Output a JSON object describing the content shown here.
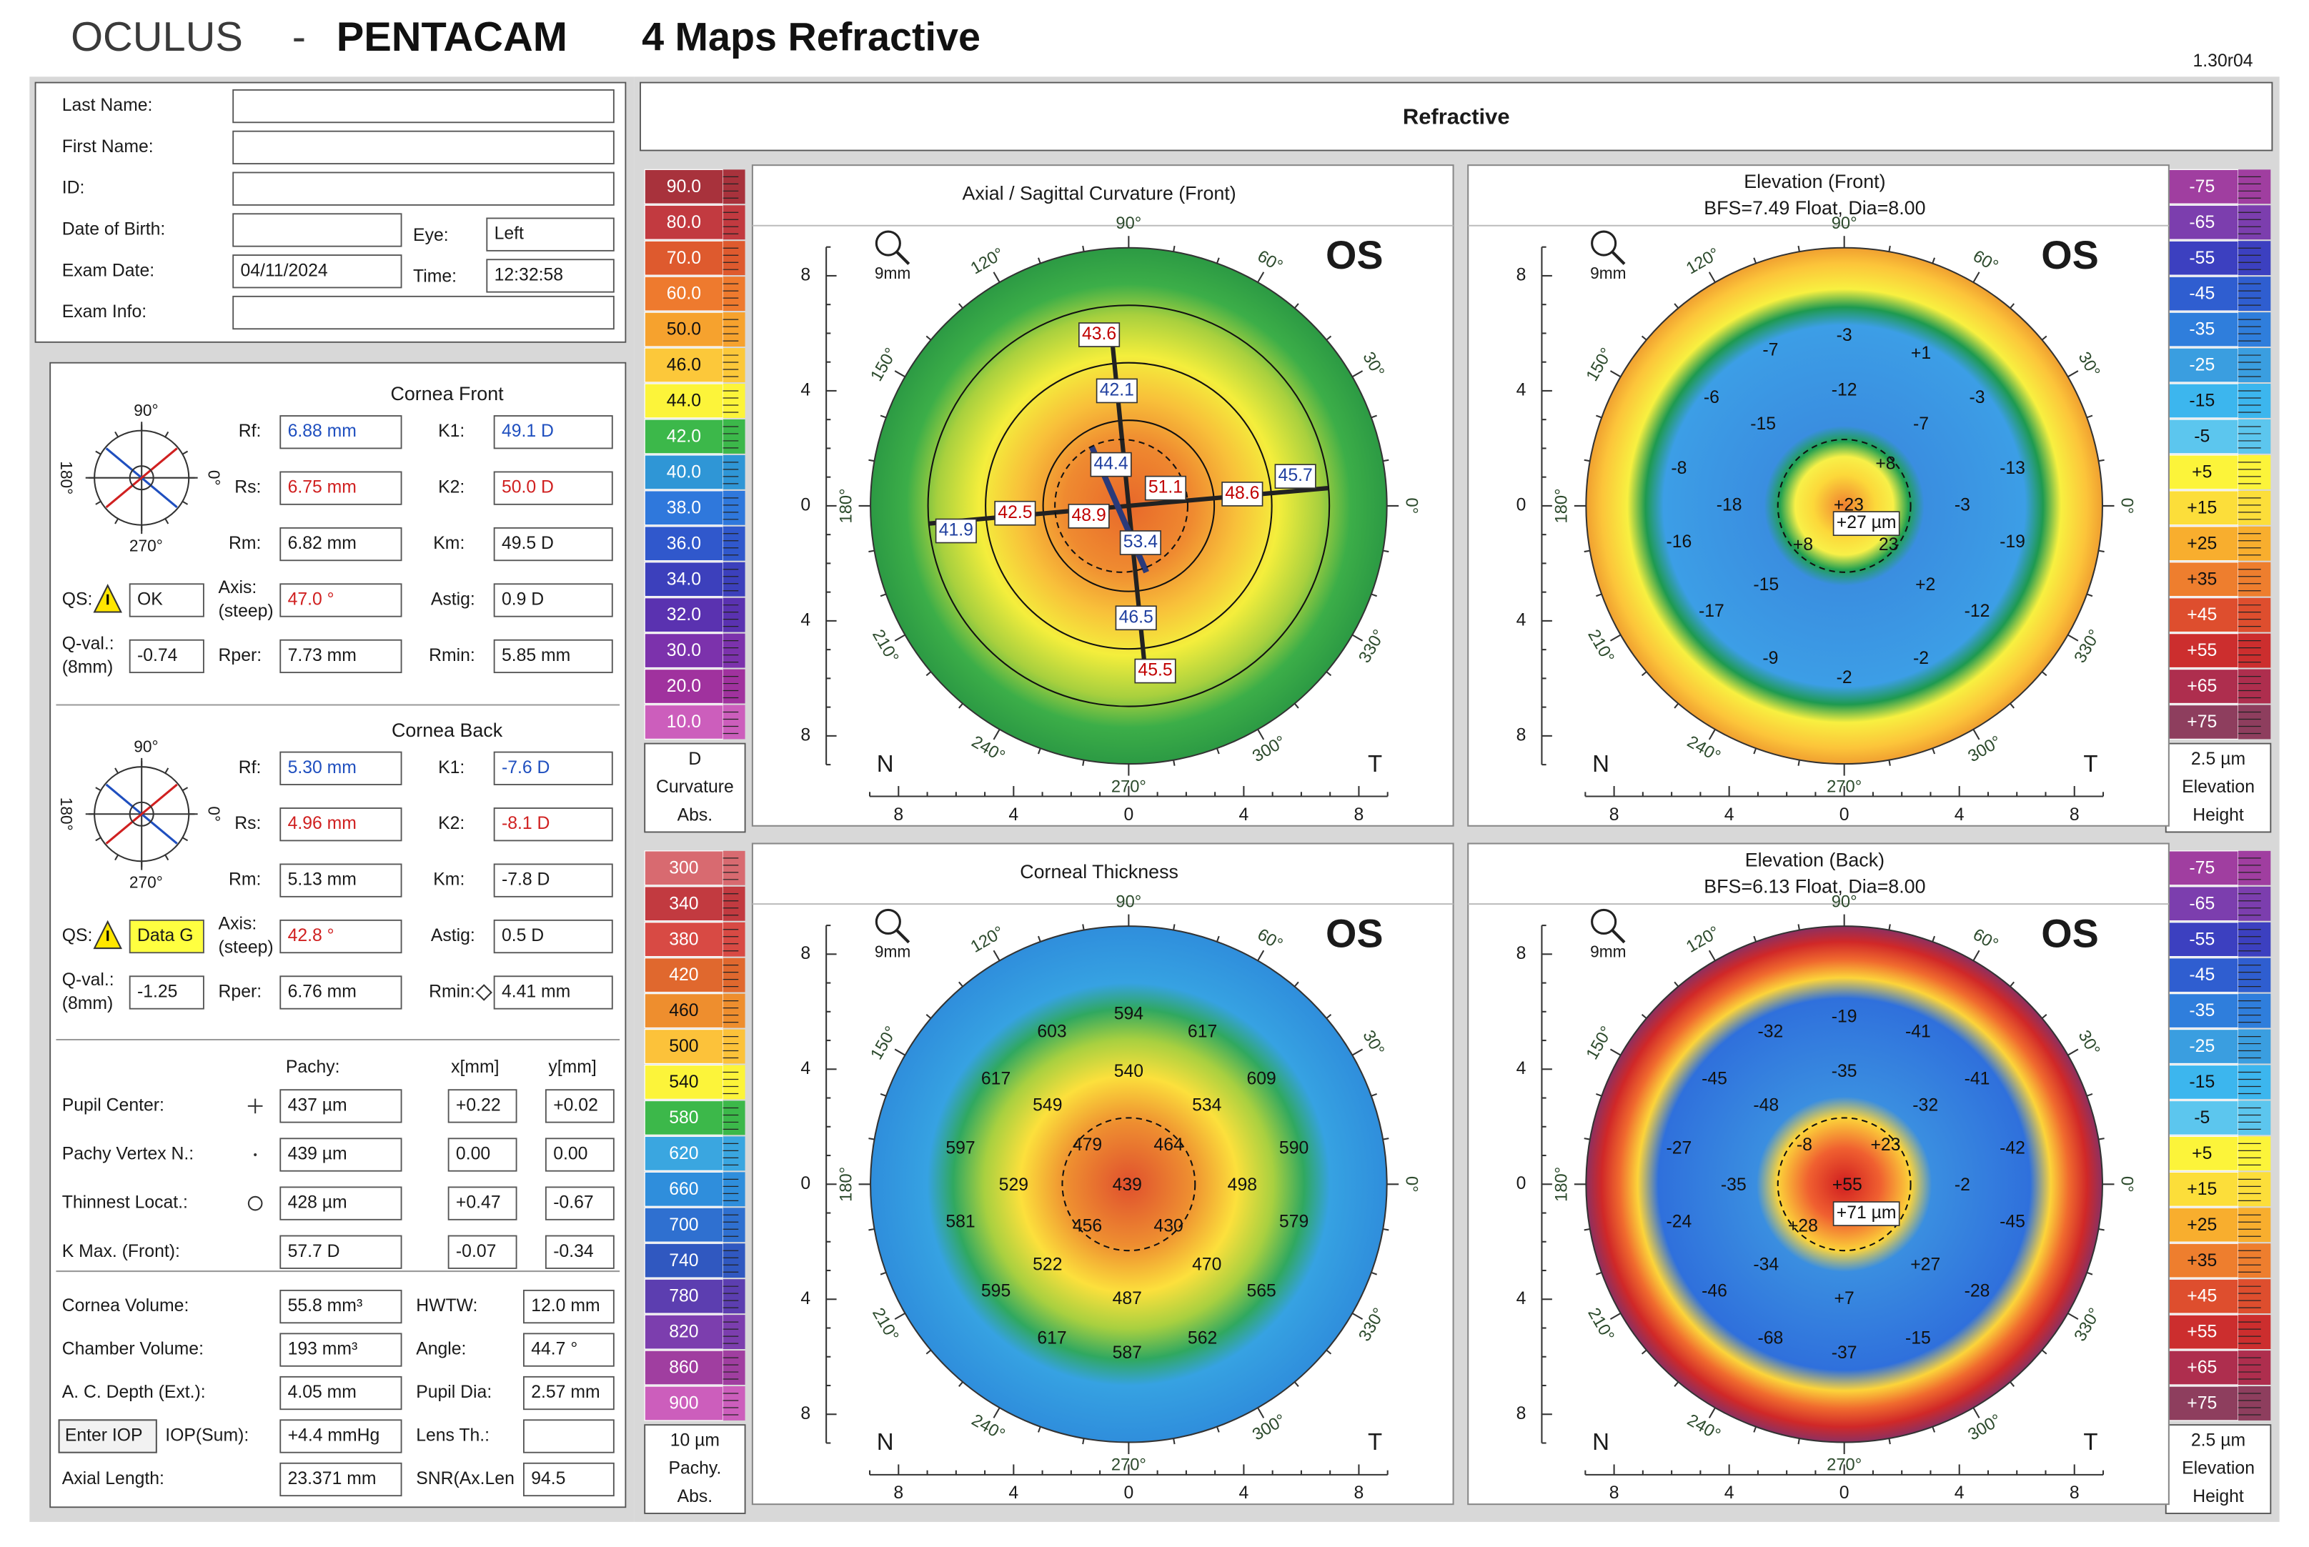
{
  "header": {
    "brand": "OCULUS",
    "dash": "-",
    "product": "PENTACAM",
    "title": "4 Maps Refractive",
    "version": "1.30r04",
    "section": "Refractive"
  },
  "patient": {
    "fields": [
      {
        "label": "Last Name:"
      },
      {
        "label": "First Name:"
      },
      {
        "label": "ID:"
      },
      {
        "label": "Date of Birth:"
      },
      {
        "label": "Exam Date:",
        "value": "04/11/2024"
      },
      {
        "label": "Exam Info:"
      }
    ],
    "eye": {
      "label": "Eye:",
      "value": "Left"
    },
    "time": {
      "label": "Time:",
      "value": "12:32:58"
    }
  },
  "dial_labels": [
    "90°",
    "180°",
    "0°",
    "270°"
  ],
  "cornea": [
    {
      "title": "Cornea Front",
      "fields": [
        {
          "label": "Rf:",
          "value": "6.88 mm",
          "color": "#1f4fbf"
        },
        {
          "label": "K1:",
          "value": "49.1 D",
          "color": "#1f4fbf"
        },
        {
          "label": "Rs:",
          "value": "6.75 mm",
          "color": "#d02020"
        },
        {
          "label": "K2:",
          "value": "50.0 D",
          "color": "#d02020"
        },
        {
          "label": "Rm:",
          "value": "6.82 mm"
        },
        {
          "label": "Km:",
          "value": "49.5 D"
        },
        {
          "label": "QS:",
          "value": "OK"
        },
        {
          "label": "Axis:",
          "sublabel": "(steep)",
          "value": "47.0 °",
          "color": "#d02020"
        },
        {
          "label": "Astig:",
          "value": "0.9 D"
        },
        {
          "label": "Q-val.:",
          "sublabel": "(8mm)",
          "value": "-0.74"
        },
        {
          "label": "Rper:",
          "value": "7.73 mm"
        },
        {
          "label": "Rmin:",
          "value": "5.85 mm"
        }
      ]
    },
    {
      "title": "Cornea Back",
      "fields": [
        {
          "label": "Rf:",
          "value": "5.30 mm",
          "color": "#1f4fbf"
        },
        {
          "label": "K1:",
          "value": "-7.6 D",
          "color": "#1f4fbf"
        },
        {
          "label": "Rs:",
          "value": "4.96 mm",
          "color": "#d02020"
        },
        {
          "label": "K2:",
          "value": "-8.1 D",
          "color": "#d02020"
        },
        {
          "label": "Rm:",
          "value": "5.13 mm"
        },
        {
          "label": "Km:",
          "value": "-7.8 D"
        },
        {
          "label": "QS:",
          "value": "Data G",
          "highlight": "#ffff40"
        },
        {
          "label": "Axis:",
          "sublabel": "(steep)",
          "value": "42.8 °",
          "color": "#d02020"
        },
        {
          "label": "Astig:",
          "value": "0.5 D"
        },
        {
          "label": "Q-val.:",
          "sublabel": "(8mm)",
          "value": "-1.25"
        },
        {
          "label": "Rper:",
          "value": "6.76 mm"
        },
        {
          "label": "Rmin:",
          "value": "4.41 mm"
        }
      ]
    }
  ],
  "pachy": {
    "headers": [
      "Pachy:",
      "x[mm]",
      "y[mm]"
    ],
    "rows": [
      {
        "label": "Pupil Center:",
        "pachy": "437 µm",
        "x": "+0.22",
        "y": "+0.02"
      },
      {
        "label": "Pachy Vertex N.:",
        "pachy": "439 µm",
        "x": "0.00",
        "y": "0.00"
      },
      {
        "label": "Thinnest Locat.:",
        "pachy": "428 µm",
        "x": "+0.47",
        "y": "-0.67"
      },
      {
        "label": "K Max. (Front):",
        "pachy": "57.7 D",
        "x": "-0.07",
        "y": "-0.34"
      }
    ]
  },
  "volumes": {
    "rows": [
      [
        {
          "label": "Cornea Volume:",
          "value": "55.8 mm³"
        },
        {
          "label": "HWTW:",
          "value": "12.0 mm"
        }
      ],
      [
        {
          "label": "Chamber Volume:",
          "value": "193 mm³"
        },
        {
          "label": "Angle:",
          "value": "44.7 °"
        }
      ],
      [
        {
          "label": "A. C. Depth (Ext.):",
          "value": "4.05 mm"
        },
        {
          "label": "Pupil Dia:",
          "value": "2.57 mm"
        }
      ],
      [
        {
          "button": "Enter IOP",
          "label": "IOP(Sum):",
          "value": "+4.4 mmHg"
        },
        {
          "label": "Lens Th.:"
        }
      ],
      [
        {
          "label": "Axial Length:",
          "value": "23.371 mm"
        },
        {
          "label": "SNR(Ax.Len",
          "value": "94.5"
        }
      ]
    ]
  },
  "scales": {
    "curvature": {
      "steps": [
        {
          "label": "90.0",
          "color": "#a8323c"
        },
        {
          "label": "80.0",
          "color": "#c23a40"
        },
        {
          "label": "70.0",
          "color": "#de5a2e"
        },
        {
          "label": "60.0",
          "color": "#ee7a2e"
        },
        {
          "label": "50.0",
          "color": "#f6a22e"
        },
        {
          "label": "46.0",
          "color": "#fcc83a"
        },
        {
          "label": "44.0",
          "color": "#fcf43a"
        },
        {
          "label": "42.0",
          "color": "#3cb84a"
        },
        {
          "label": "40.0",
          "color": "#2f96d6"
        },
        {
          "label": "38.0",
          "color": "#2f78dc"
        },
        {
          "label": "36.0",
          "color": "#3058cc"
        },
        {
          "label": "34.0",
          "color": "#3c40bc"
        },
        {
          "label": "32.0",
          "color": "#5a32b0"
        },
        {
          "label": "30.0",
          "color": "#7c32ac"
        },
        {
          "label": "20.0",
          "color": "#a0329e"
        },
        {
          "label": "10.0",
          "color": "#cc5ebc"
        }
      ],
      "unit": "D",
      "caption": [
        "Curvature",
        "Abs."
      ]
    },
    "pachy": {
      "steps": [
        {
          "label": "300",
          "color": "#d86a70"
        },
        {
          "label": "340",
          "color": "#c23a40"
        },
        {
          "label": "380",
          "color": "#d84a44"
        },
        {
          "label": "420",
          "color": "#e0682e"
        },
        {
          "label": "460",
          "color": "#ee8e2e"
        },
        {
          "label": "500",
          "color": "#fcc23a"
        },
        {
          "label": "540",
          "color": "#fcf43a"
        },
        {
          "label": "580",
          "color": "#3cb84a"
        },
        {
          "label": "620",
          "color": "#3aa6e0"
        },
        {
          "label": "660",
          "color": "#2f8edc"
        },
        {
          "label": "700",
          "color": "#2f70d0"
        },
        {
          "label": "740",
          "color": "#3058c0"
        },
        {
          "label": "780",
          "color": "#5c3eb0"
        },
        {
          "label": "820",
          "color": "#7c3eae"
        },
        {
          "label": "860",
          "color": "#a03ea0"
        },
        {
          "label": "900",
          "color": "#cc5ebc"
        }
      ],
      "unit": "10 µm",
      "caption": [
        "Pachy.",
        "Abs."
      ]
    },
    "elevation": {
      "steps": [
        {
          "label": "-75",
          "color": "#a03ea0"
        },
        {
          "label": "-65",
          "color": "#7c3eae"
        },
        {
          "label": "-55",
          "color": "#3c40c0"
        },
        {
          "label": "-45",
          "color": "#2f5ed0"
        },
        {
          "label": "-35",
          "color": "#2f7edc"
        },
        {
          "label": "-25",
          "color": "#3a9ee0"
        },
        {
          "label": "-15",
          "color": "#3cb6ee"
        },
        {
          "label": "-5",
          "color": "#5cc6ee"
        },
        {
          "label": "+5",
          "color": "#fcf43a"
        },
        {
          "label": "+15",
          "color": "#fcde3a"
        },
        {
          "label": "+25",
          "color": "#f8ae2e"
        },
        {
          "label": "+35",
          "color": "#ee7e2e"
        },
        {
          "label": "+45",
          "color": "#de4e2e"
        },
        {
          "label": "+55",
          "color": "#cc2e2e"
        },
        {
          "label": "+65",
          "color": "#ae2e4e"
        },
        {
          "label": "+75",
          "color": "#8e3e5e"
        }
      ],
      "unit": "2.5 µm",
      "caption": [
        "Elevation",
        "Height"
      ]
    }
  },
  "map_common": {
    "eye": "OS",
    "zoom": "9mm",
    "axis_ticks": [
      "8",
      "4",
      "0",
      "4",
      "8"
    ],
    "angles": [
      "90°",
      "120°",
      "60°",
      "150°",
      "30°",
      "180°",
      "0°",
      "210°",
      "330°",
      "240°",
      "300°",
      "270°"
    ],
    "nasal": "N",
    "temporal": "T"
  },
  "maps": [
    {
      "title": "Axial / Sagittal Curvature (Front)",
      "values": [
        {
          "text": "43.6",
          "color": "#c00000",
          "boxed": true
        },
        {
          "text": "42.1",
          "color": "#1f3f9f",
          "boxed": true
        },
        {
          "text": "44.4",
          "color": "#1f3f9f",
          "boxed": true
        },
        {
          "text": "51.1",
          "color": "#c00000",
          "boxed": true
        },
        {
          "text": "45.7",
          "color": "#1f3f9f",
          "boxed": true
        },
        {
          "text": "48.6",
          "color": "#c00000",
          "boxed": true
        },
        {
          "text": "41.9",
          "color": "#1f3f9f",
          "boxed": true
        },
        {
          "text": "42.5",
          "color": "#c00000",
          "boxed": true
        },
        {
          "text": "48.9",
          "color": "#c00000",
          "boxed": true
        },
        {
          "text": "53.4",
          "color": "#1f3f9f",
          "boxed": true
        },
        {
          "text": "46.5",
          "color": "#1f3f9f",
          "boxed": true
        },
        {
          "text": "45.5",
          "color": "#c00000",
          "boxed": true
        }
      ]
    },
    {
      "title": "Elevation (Front)",
      "subtitle": "BFS=7.49 Float, Dia=8.00",
      "values": [
        {
          "text": "-7"
        },
        {
          "text": "-3"
        },
        {
          "text": "+1"
        },
        {
          "text": "-6"
        },
        {
          "text": "-12"
        },
        {
          "text": "-3"
        },
        {
          "text": "-15"
        },
        {
          "text": "-7"
        },
        {
          "text": "-8"
        },
        {
          "text": "+8"
        },
        {
          "text": "-13"
        },
        {
          "text": "-18"
        },
        {
          "text": "+23"
        },
        {
          "text": "+27 µm",
          "boxed": true
        },
        {
          "text": "-3"
        },
        {
          "text": "-16"
        },
        {
          "text": "+8"
        },
        {
          "text": "23"
        },
        {
          "text": "-19"
        },
        {
          "text": "-15"
        },
        {
          "text": "+2"
        },
        {
          "text": "-17"
        },
        {
          "text": "-12"
        },
        {
          "text": "-9"
        },
        {
          "text": "-2"
        },
        {
          "text": "-2"
        }
      ]
    },
    {
      "title": "Corneal Thickness",
      "values": [
        {
          "text": "594"
        },
        {
          "text": "603"
        },
        {
          "text": "617"
        },
        {
          "text": "617"
        },
        {
          "text": "540"
        },
        {
          "text": "609"
        },
        {
          "text": "549"
        },
        {
          "text": "534"
        },
        {
          "text": "597"
        },
        {
          "text": "479"
        },
        {
          "text": "464"
        },
        {
          "text": "590"
        },
        {
          "text": "529"
        },
        {
          "text": "439"
        },
        {
          "text": "498"
        },
        {
          "text": "581"
        },
        {
          "text": "456"
        },
        {
          "text": "430"
        },
        {
          "text": "579"
        },
        {
          "text": "522"
        },
        {
          "text": "470"
        },
        {
          "text": "595"
        },
        {
          "text": "487"
        },
        {
          "text": "565"
        },
        {
          "text": "617"
        },
        {
          "text": "587"
        },
        {
          "text": "562"
        }
      ]
    },
    {
      "title": "Elevation (Back)",
      "subtitle": "BFS=6.13 Float, Dia=8.00",
      "values": [
        {
          "text": "-19"
        },
        {
          "text": "-32"
        },
        {
          "text": "-41"
        },
        {
          "text": "-45"
        },
        {
          "text": "-35"
        },
        {
          "text": "-41"
        },
        {
          "text": "-48"
        },
        {
          "text": "-32"
        },
        {
          "text": "-27"
        },
        {
          "text": "-8"
        },
        {
          "text": "+23"
        },
        {
          "text": "-42"
        },
        {
          "text": "-35"
        },
        {
          "text": "+55"
        },
        {
          "text": "-2"
        },
        {
          "text": "-24"
        },
        {
          "text": "+28"
        },
        {
          "text": "+71 µm",
          "boxed": true
        },
        {
          "text": "-45"
        },
        {
          "text": "-34"
        },
        {
          "text": "+27"
        },
        {
          "text": "-46"
        },
        {
          "text": "+7"
        },
        {
          "text": "-28"
        },
        {
          "text": "-68"
        },
        {
          "text": "-37"
        },
        {
          "text": "-15"
        }
      ]
    }
  ]
}
